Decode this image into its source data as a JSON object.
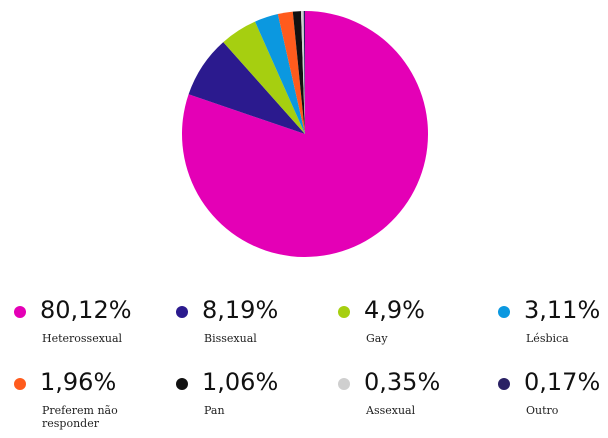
{
  "chart_data": {
    "type": "pie",
    "categories": [
      "Heterossexual",
      "Bissexual",
      "Gay",
      "Lésbica",
      "Preferem não responder",
      "Pan",
      "Assexual",
      "Outro"
    ],
    "values": [
      80.12,
      8.19,
      4.9,
      3.11,
      1.96,
      1.06,
      0.35,
      0.17
    ],
    "value_labels": [
      "80,12%",
      "8,19%",
      "4,9%",
      "3,11%",
      "1,96%",
      "1,06%",
      "0,35%",
      "0,17%"
    ],
    "colors": [
      "#e400b6",
      "#2b1a8e",
      "#a6cf10",
      "#0b98e0",
      "#ff5b1d",
      "#111111",
      "#cfcfcf",
      "#2a2164"
    ]
  }
}
